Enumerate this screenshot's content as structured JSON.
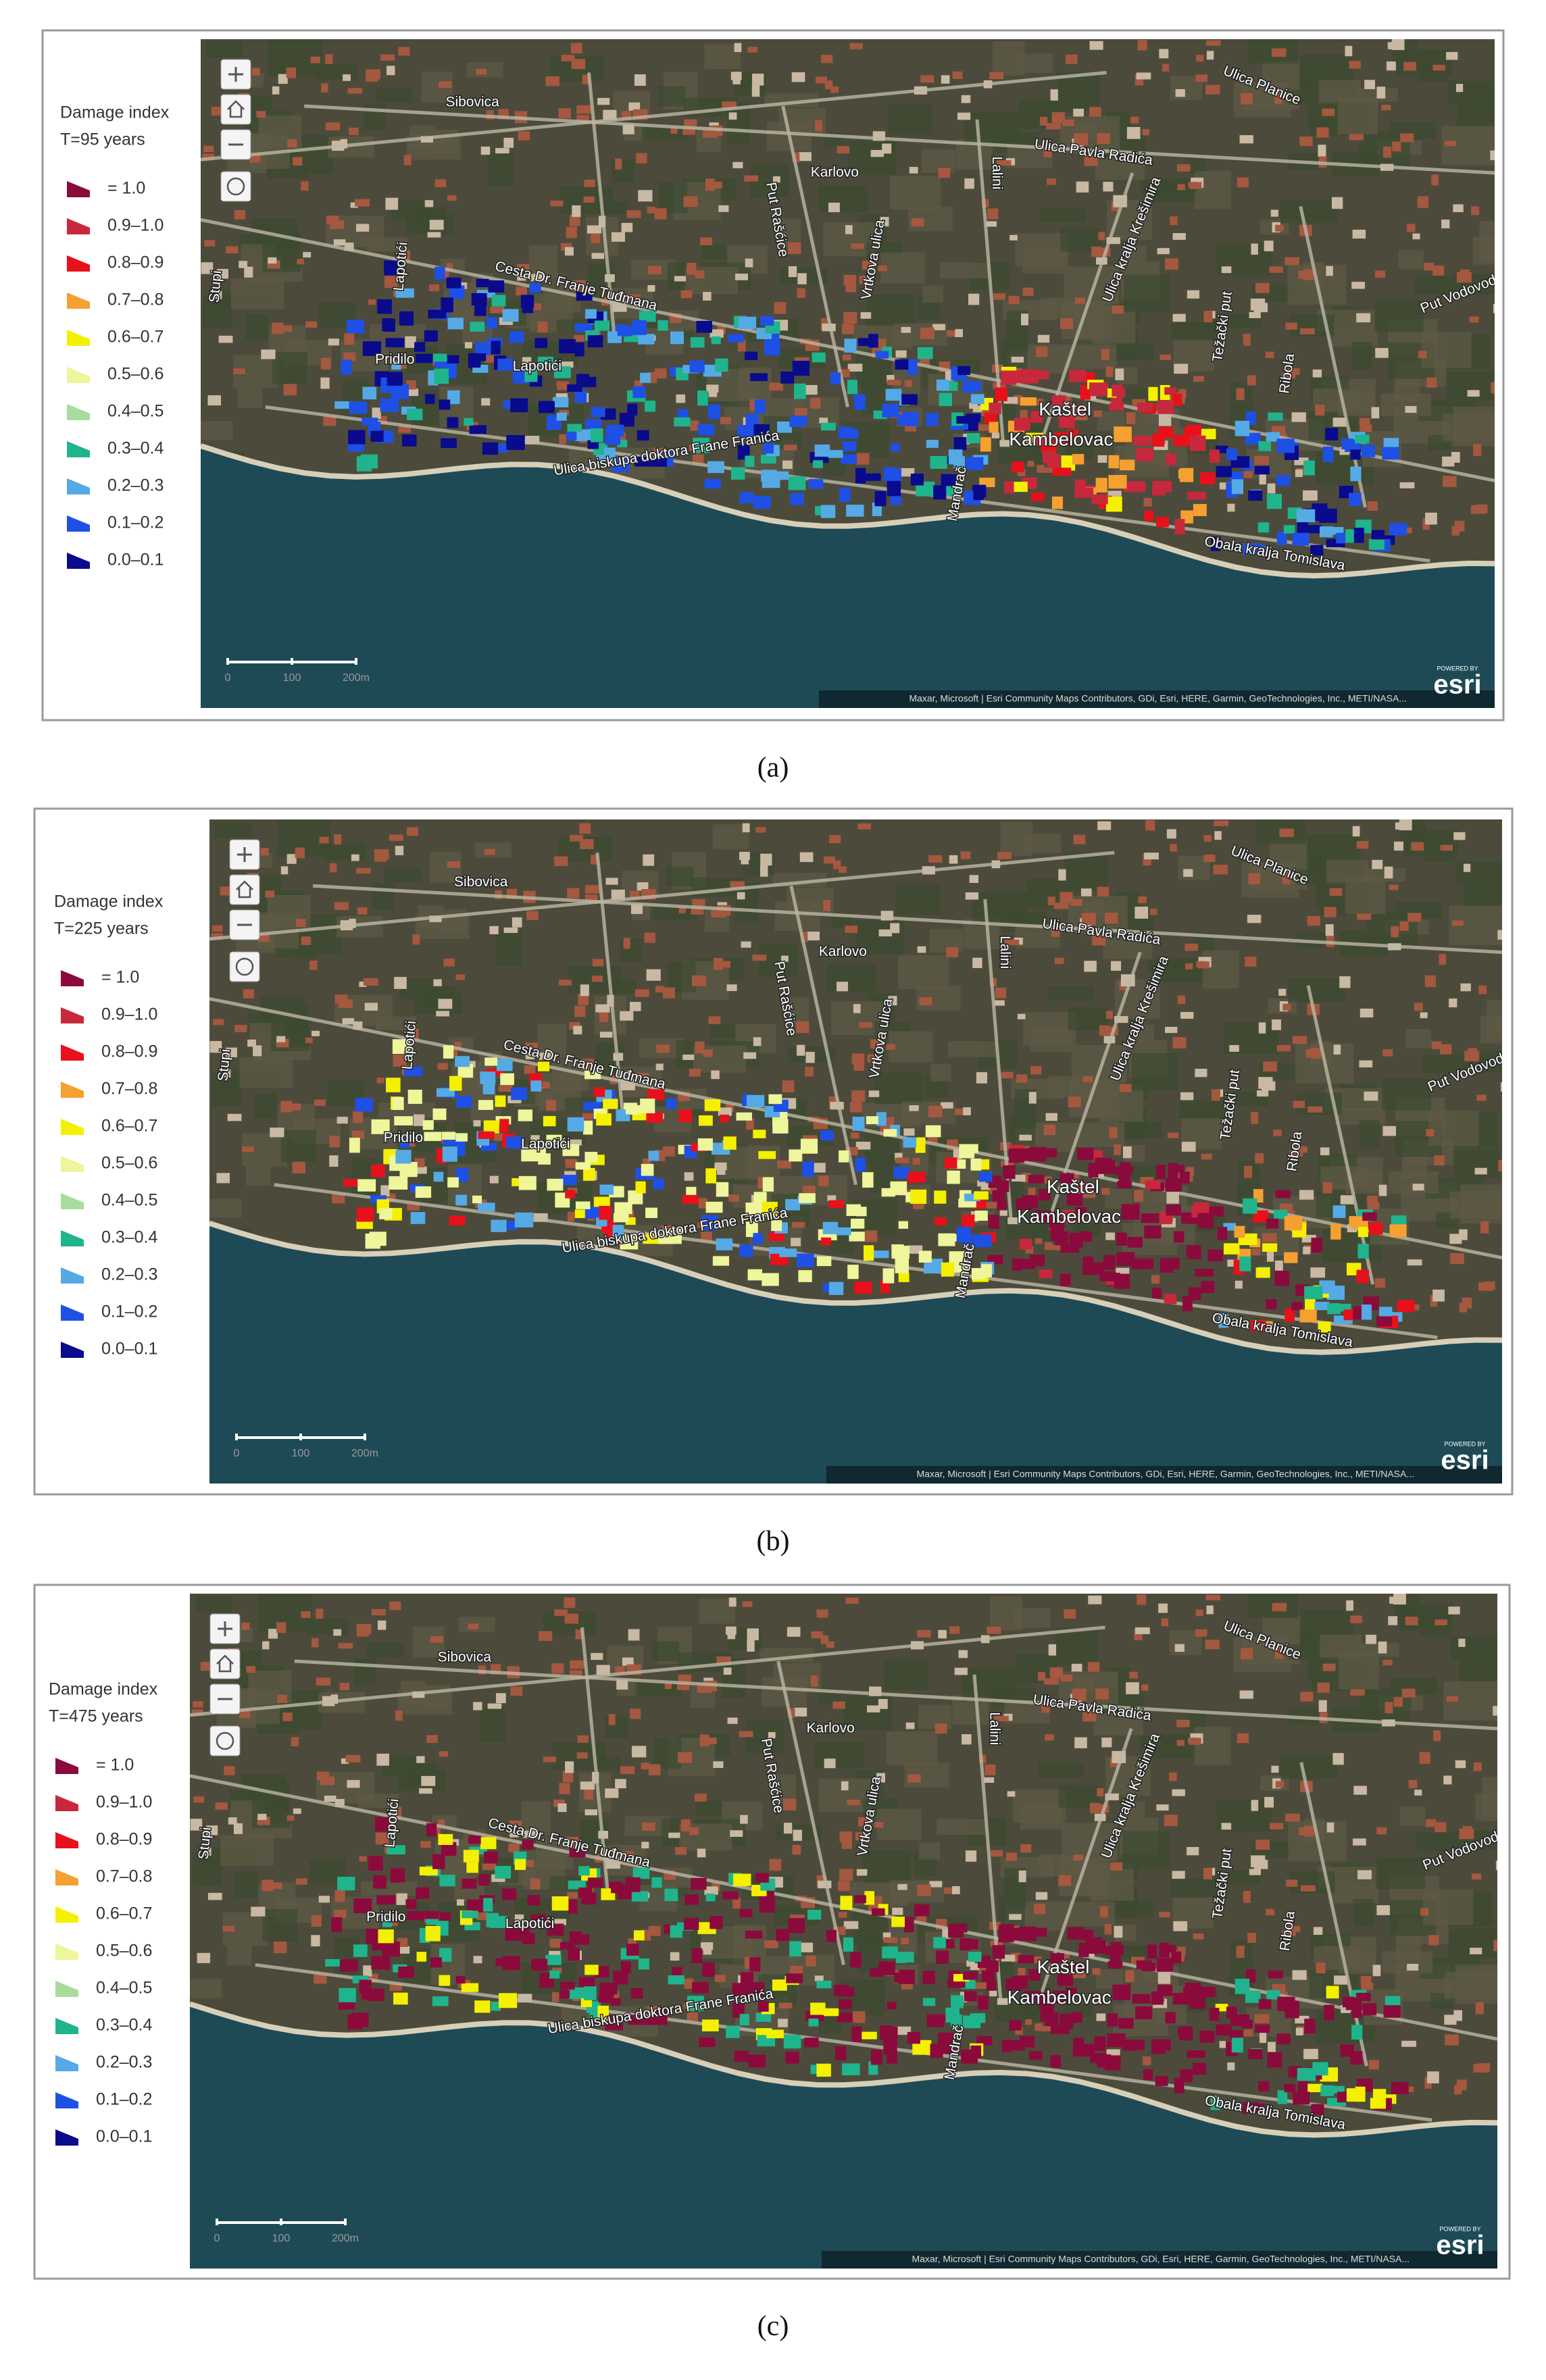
{
  "legend_classes": [
    {
      "label": "= 1.0",
      "color": "#8b0a3c"
    },
    {
      "label": "0.9–1.0",
      "color": "#c8283c"
    },
    {
      "label": "0.8–0.9",
      "color": "#e8101a"
    },
    {
      "label": "0.7–0.8",
      "color": "#f5a030"
    },
    {
      "label": "0.6–0.7",
      "color": "#f5f000"
    },
    {
      "label": "0.5–0.6",
      "color": "#eef59a"
    },
    {
      "label": "0.4–0.5",
      "color": "#a8dc9c"
    },
    {
      "label": "0.3–0.4",
      "color": "#1fb48c"
    },
    {
      "label": "0.2–0.3",
      "color": "#55aae6"
    },
    {
      "label": "0.1–0.2",
      "color": "#1e50e6"
    },
    {
      "label": "0.0–0.1",
      "color": "#0a0a8c"
    }
  ],
  "map_labels": [
    "Sibovica",
    "Ulica Planice",
    "Ulica Pavla Radića",
    "Karlovo",
    "Lalini",
    "Put Rašćice",
    "Vrtkova ulica",
    "Lapotići",
    "Lapotići",
    "Cesta Dr. Franje Tuđmana",
    "Stupi",
    "Pridilo",
    "Ulica biskupa doktora Frane Franića",
    "Mandrač",
    "Kaštel",
    "Kambelovac",
    "Obala kralja Tomislava",
    "Ulica kralja Krešimira",
    "Težački put",
    "Ribola",
    "Put Vodovoda"
  ],
  "scale_labels": [
    "0",
    "100",
    "200m"
  ],
  "attribution": "Maxar, Microsoft | Esri Community Maps Contributors, GDi, Esri, HERE, Garmin, GeoTechnologies, Inc., METI/NASA...",
  "logo": {
    "powered_by": "POWERED BY",
    "name": "esri"
  },
  "panels": [
    {
      "legend_title": "Damage index",
      "return_period": "T=95 years",
      "caption": "(a)"
    },
    {
      "legend_title": "Damage index",
      "return_period": "T=225 years",
      "caption": "(b)"
    },
    {
      "legend_title": "Damage index",
      "return_period": "T=475 years",
      "caption": "(c)"
    }
  ]
}
